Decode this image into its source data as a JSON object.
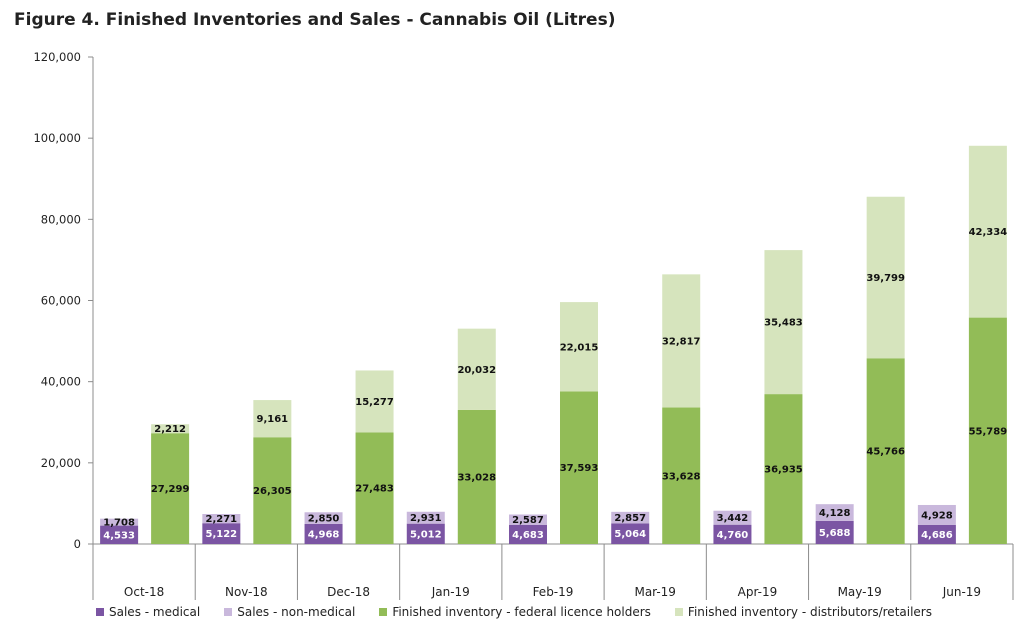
{
  "title": "Figure 4. Finished Inventories and Sales - Cannabis Oil (Litres)",
  "chart_data": {
    "type": "bar",
    "stacked": true,
    "title": "Figure 4. Finished Inventories and Sales - Cannabis Oil (Litres)",
    "categories": [
      "Oct-18",
      "Nov-18",
      "Dec-18",
      "Jan-19",
      "Feb-19",
      "Mar-19",
      "Apr-19",
      "May-19",
      "Jun-19"
    ],
    "ylim": [
      0,
      120000
    ],
    "yticks": [
      0,
      20000,
      40000,
      60000,
      80000,
      100000,
      120000
    ],
    "ytick_labels": [
      "0",
      "20,000",
      "40,000",
      "60,000",
      "80,000",
      "100,000",
      "120,000"
    ],
    "grid": false,
    "legend_position": "bottom",
    "stacks": [
      {
        "name": "sales",
        "series": [
          {
            "name": "Sales - medical",
            "color": "#7b55a3",
            "label_color": "#ffffff",
            "values": [
              4533,
              5122,
              4968,
              5012,
              4683,
              5064,
              4760,
              5688,
              4686
            ],
            "labels": [
              "4,533",
              "5,122",
              "4,968",
              "5,012",
              "4,683",
              "5,064",
              "4,760",
              "5,688",
              "4,686"
            ]
          },
          {
            "name": "Sales - non-medical",
            "color": "#c9b8dc",
            "label_color": "#111111",
            "values": [
              1708,
              2271,
              2850,
              2931,
              2587,
              2857,
              3442,
              4128,
              4928
            ],
            "labels": [
              "1,708",
              "2,271",
              "2,850",
              "2,931",
              "2,587",
              "2,857",
              "3,442",
              "4,128",
              "4,928"
            ]
          }
        ]
      },
      {
        "name": "inventory",
        "series": [
          {
            "name": "Finished inventory - federal licence holders",
            "color": "#92bc57",
            "label_color": "#111111",
            "values": [
              27299,
              26305,
              27483,
              33028,
              37593,
              33628,
              36935,
              45766,
              55789
            ],
            "labels": [
              "27,299",
              "26,305",
              "27,483",
              "33,028",
              "37,593",
              "33,628",
              "36,935",
              "45,766",
              "55,789"
            ]
          },
          {
            "name": "Finished inventory - distributors/retailers",
            "color": "#d6e4bd",
            "label_color": "#111111",
            "values": [
              2212,
              9161,
              15277,
              20032,
              22015,
              32817,
              35483,
              39799,
              42334
            ],
            "labels": [
              "2,212",
              "9,161",
              "15,277",
              "20,032",
              "22,015",
              "32,817",
              "35,483",
              "39,799",
              "42,334"
            ]
          }
        ]
      }
    ]
  }
}
